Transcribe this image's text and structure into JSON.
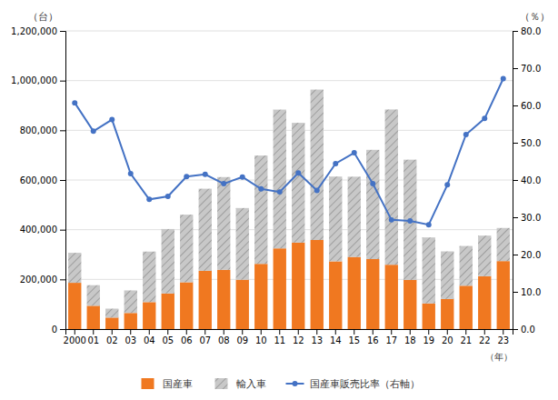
{
  "chart_data": {
    "type": "bar",
    "stacked": true,
    "grid": true,
    "legend": "bottom",
    "xlabel": "（年）",
    "ylabel": "（台）",
    "y2label": "（％）",
    "categories": [
      "2000",
      "01",
      "02",
      "03",
      "04",
      "05",
      "06",
      "07",
      "08",
      "09",
      "10",
      "11",
      "12",
      "13",
      "14",
      "15",
      "16",
      "17",
      "18",
      "19",
      "20",
      "21",
      "22",
      "23"
    ],
    "series": [
      {
        "name": "国産車",
        "color": "#f07820",
        "values": [
          186283,
          93833,
          46294,
          64868,
          108572,
          143282,
          188479,
          234354,
          238465,
          198732,
          262532,
          324795,
          347997,
          358582,
          272605,
          290337,
          281659,
          259008,
          197827,
          103282,
          121059,
          174521,
          212746,
          273665
        ]
      },
      {
        "name": "輸入車",
        "color": "#c8c8c8",
        "values": [
          120662,
          82834,
          36051,
          90798,
          203389,
          259408,
          271999,
          330572,
          373305,
          288410,
          435872,
          558555,
          482061,
          605335,
          341243,
          322930,
          439752,
          624794,
          483989,
          265524,
          191730,
          159868,
          163511,
          133275
        ]
      },
      {
        "name": "国産車販売比率（右軸）",
        "color": "#4472c4",
        "type": "line",
        "axis": "y2",
        "marker": "circle",
        "values": [
          60.7,
          53.1,
          56.2,
          41.7,
          34.8,
          35.6,
          40.9,
          41.5,
          39.0,
          40.8,
          37.6,
          36.8,
          41.9,
          37.2,
          44.4,
          47.3,
          39.0,
          29.3,
          29.0,
          28.0,
          38.7,
          52.2,
          56.5,
          67.2
        ]
      }
    ],
    "ylim": [
      0,
      1200000
    ],
    "yticks": [
      0,
      {
        "value": 200000,
        "label": "200,000"
      },
      {
        "value": 400000,
        "label": "400,000"
      },
      {
        "value": 600000,
        "label": "600,000"
      },
      {
        "value": 800000,
        "label": "800,000"
      },
      {
        "value": 1000000,
        "label": "1,000,000"
      },
      {
        "value": 1200000,
        "label": "1,200,000"
      }
    ],
    "y2lim": [
      0,
      80
    ],
    "y2ticks": [
      {
        "value": 0,
        "label": "0.0"
      },
      {
        "value": 10,
        "label": "10.0"
      },
      {
        "value": 20,
        "label": "20.0"
      },
      {
        "value": 30,
        "label": "30.0"
      },
      {
        "value": 40,
        "label": "40.0"
      },
      {
        "value": 50,
        "label": "50.0"
      },
      {
        "value": 60,
        "label": "60.0"
      },
      {
        "value": 70,
        "label": "70.0"
      },
      {
        "value": 80,
        "label": "80.0"
      }
    ]
  }
}
